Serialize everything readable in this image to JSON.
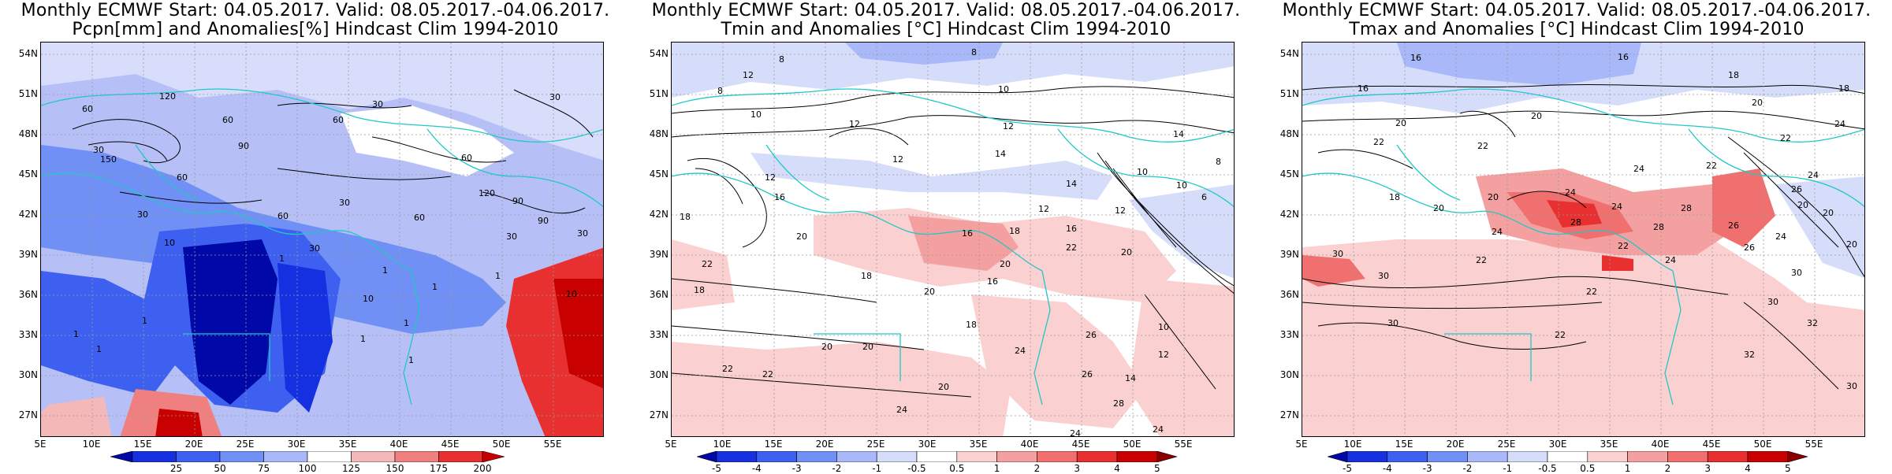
{
  "panels": [
    {
      "title_line1": "Monthly ECMWF Start: 04.05.2017. Valid: 08.05.2017.-04.06.2017.",
      "title_line2": "Pcpn[mm] and Anomalies[%] Hindcast Clim 1994-2010",
      "colorbar": {
        "labels": [
          "25",
          "50",
          "75",
          "100",
          "125",
          "150",
          "175",
          "200"
        ],
        "colors": [
          "#0008a8",
          "#1530e0",
          "#3d60f0",
          "#7090f5",
          "#a8b8f8",
          "#ffffff",
          "#f5b8b8",
          "#f08080",
          "#e83030",
          "#c80000"
        ]
      },
      "contour_labels": [
        "30",
        "60",
        "90",
        "150",
        "30",
        "30",
        "120",
        "60",
        "60",
        "30",
        "90",
        "1",
        "1",
        "1",
        "10",
        "10",
        "30",
        "60",
        "30",
        "1",
        "1",
        "1",
        "1",
        "10",
        "30",
        "60",
        "60",
        "90",
        "120",
        "60",
        "30",
        "1",
        "1",
        "1"
      ]
    },
    {
      "title_line1": "Monthly ECMWF Start: 04.05.2017. Valid: 08.05.2017.-04.06.2017.",
      "title_line2": "Tmin and Anomalies [°C] Hindcast Clim 1994-2010",
      "colorbar": {
        "labels": [
          "-5",
          "-4",
          "-3",
          "-2",
          "-1",
          "-0.5",
          "0.5",
          "1",
          "2",
          "3",
          "4",
          "5"
        ],
        "colors": [
          "#0008a8",
          "#1530e0",
          "#3d60f0",
          "#7090f5",
          "#a8b8f8",
          "#d5ddfb",
          "#ffffff",
          "#fbd0d0",
          "#f5a0a0",
          "#f07070",
          "#e83030",
          "#c80000",
          "#8a0000"
        ]
      },
      "contour_labels": [
        "8",
        "8",
        "8",
        "10",
        "10",
        "12",
        "12",
        "14",
        "14",
        "12",
        "12",
        "16",
        "18",
        "20",
        "20",
        "18",
        "22",
        "22",
        "24",
        "26",
        "18",
        "20",
        "14",
        "12",
        "10",
        "16",
        "20",
        "24",
        "16",
        "22",
        "12",
        "10",
        "8",
        "6",
        "10",
        "12",
        "14",
        "12",
        "18",
        "20",
        "22",
        "24",
        "28",
        "26",
        "20",
        "16",
        "18",
        "20",
        "24"
      ]
    },
    {
      "title_line1": "Monthly ECMWF Start: 04.05.2017. Valid: 08.05.2017.-04.06.2017.",
      "title_line2": "Tmax and Anomalies [°C] Hindcast Clim 1994-2010",
      "colorbar": {
        "labels": [
          "-5",
          "-4",
          "-3",
          "-2",
          "-1",
          "-0.5",
          "0.5",
          "1",
          "2",
          "3",
          "4",
          "5"
        ],
        "colors": [
          "#0008a8",
          "#1530e0",
          "#3d60f0",
          "#7090f5",
          "#a8b8f8",
          "#d5ddfb",
          "#ffffff",
          "#fbd0d0",
          "#f5a0a0",
          "#f07070",
          "#e83030",
          "#c80000",
          "#8a0000"
        ]
      },
      "contour_labels": [
        "16",
        "16",
        "18",
        "20",
        "20",
        "22",
        "22",
        "24",
        "24",
        "26",
        "20",
        "22",
        "24",
        "28",
        "28",
        "30",
        "30",
        "30",
        "22",
        "22",
        "24",
        "20",
        "26",
        "18",
        "20",
        "30",
        "32",
        "22",
        "20",
        "16",
        "18",
        "24",
        "26",
        "24",
        "20",
        "22",
        "28",
        "30",
        "32",
        "20",
        "22",
        "24",
        "24",
        "30"
      ]
    }
  ],
  "lat_labels": [
    "54N",
    "51N",
    "48N",
    "45N",
    "42N",
    "39N",
    "36N",
    "33N",
    "30N",
    "27N"
  ],
  "lon_labels": [
    "5E",
    "10E",
    "15E",
    "20E",
    "25E",
    "30E",
    "35E",
    "40E",
    "45E",
    "50E",
    "55E"
  ]
}
